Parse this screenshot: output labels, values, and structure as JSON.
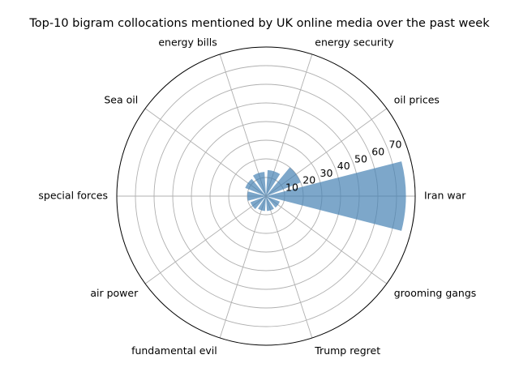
{
  "chart_data": {
    "type": "bar",
    "subtype": "polar",
    "title": "Top-10 bigram collocations mentioned by UK online media over the past week",
    "categories": [
      "Iran war",
      "oil prices",
      "energy security",
      "energy bills",
      "Sea oil",
      "special forces",
      "air power",
      "fundamental evil",
      "Trump regret",
      "grooming gangs"
    ],
    "values": [
      75,
      20,
      14,
      13,
      12,
      10,
      9,
      8,
      8,
      8
    ],
    "radial_ticks": [
      10,
      20,
      30,
      40,
      50,
      60,
      70
    ],
    "rlim": [
      0,
      80
    ],
    "grid": true,
    "bar_color": "#4682b4",
    "legend": "none"
  }
}
